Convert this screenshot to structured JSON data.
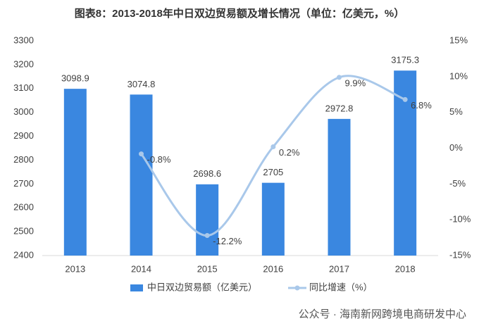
{
  "chart_data": {
    "type": "bar",
    "title": "图表8：2013-2018年中日双边贸易额及增长情况（单位：亿美元，%）",
    "categories": [
      "2013",
      "2014",
      "2015",
      "2016",
      "2017",
      "2018"
    ],
    "series": [
      {
        "name": "中日双边贸易额（亿美元）",
        "type": "bar",
        "color": "#3a87e0",
        "values": [
          3098.9,
          3074.8,
          2698.6,
          2705,
          2972.8,
          3175.3
        ]
      },
      {
        "name": "同比增速（%）",
        "type": "line",
        "axis": "y2",
        "color": "#a9c8ea",
        "values": [
          null,
          -0.8,
          -12.2,
          0.2,
          9.9,
          6.8
        ],
        "value_labels": [
          null,
          "-0.8%",
          "-12.2%",
          "0.2%",
          "9.9%",
          "6.8%"
        ]
      }
    ],
    "ylim": [
      2400,
      3300
    ],
    "yticks": [
      2400,
      2500,
      2600,
      2700,
      2800,
      2900,
      3000,
      3100,
      3200,
      3300
    ],
    "y2lim": [
      -15,
      15
    ],
    "y2ticks": [
      {
        "value": -15,
        "label": "-15%"
      },
      {
        "value": -10,
        "label": "-10%"
      },
      {
        "value": -5,
        "label": "-5%"
      },
      {
        "value": 0,
        "label": "0%"
      },
      {
        "value": 5,
        "label": "5%"
      },
      {
        "value": 10,
        "label": "10%"
      },
      {
        "value": 15,
        "label": "15%"
      }
    ],
    "grid": false,
    "legend": "bottom"
  },
  "watermark": "公众号 · 海南新网跨境电商研发中心"
}
